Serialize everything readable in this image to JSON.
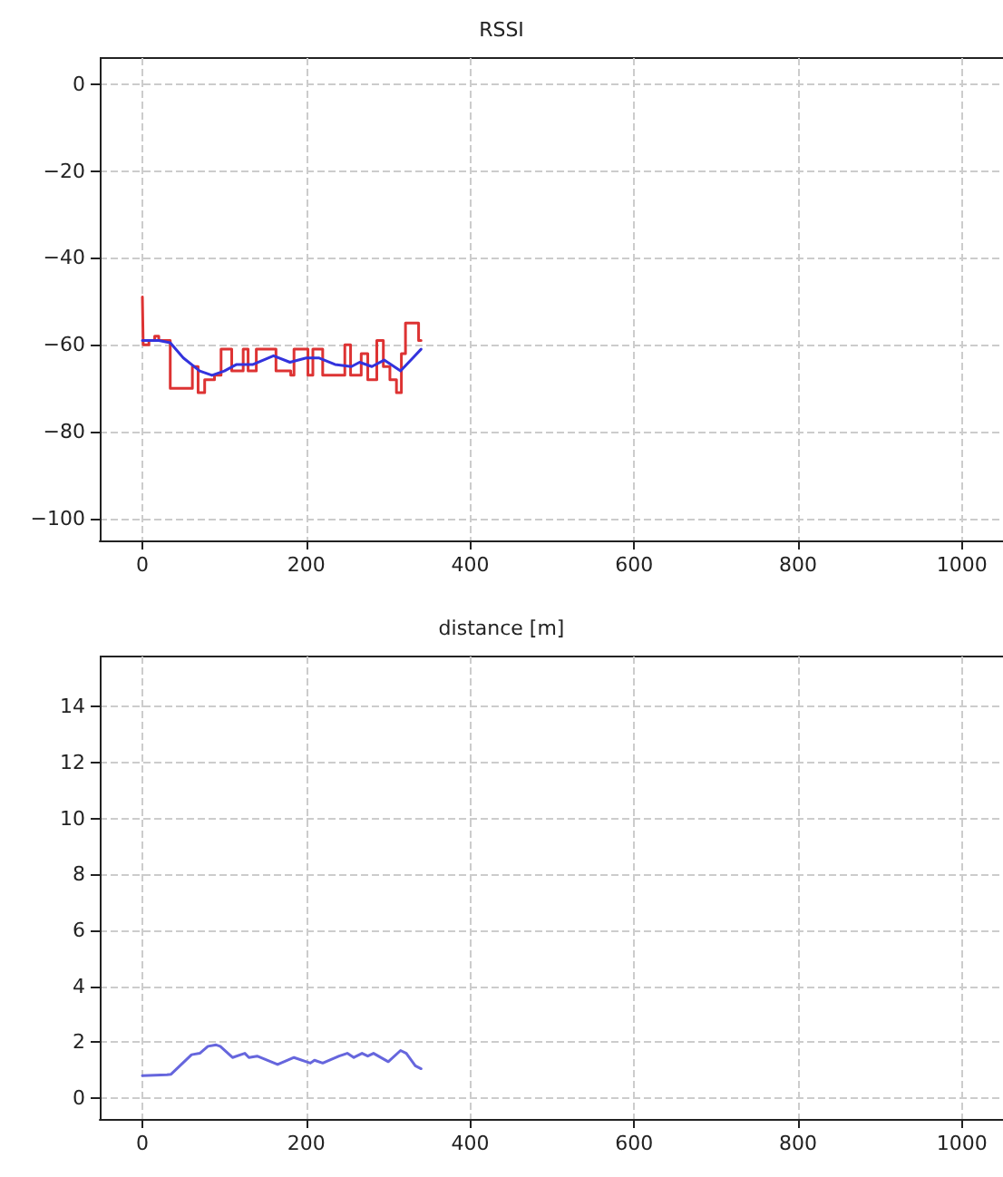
{
  "chart_data": [
    {
      "type": "line",
      "title": "RSSI",
      "xlim": [
        -52,
        1050
      ],
      "ylim": [
        -105,
        6
      ],
      "xticks": [
        0,
        200,
        400,
        600,
        800,
        1000
      ],
      "yticks": [
        0,
        -20,
        -40,
        -60,
        -80,
        -100
      ],
      "grid": true,
      "series": [
        {
          "type": "step",
          "color": "#dd3333",
          "x": [
            0,
            1,
            8,
            15,
            20,
            34,
            61,
            68,
            76,
            88,
            96,
            109,
            123,
            129,
            139,
            163,
            181,
            185,
            202,
            208,
            220,
            247,
            254,
            267,
            275,
            286,
            294,
            302,
            310,
            316,
            321,
            337,
            340
          ],
          "values": [
            -49,
            -60,
            -59,
            -58,
            -59,
            -70,
            -65,
            -71,
            -68,
            -67,
            -61,
            -66,
            -61,
            -66,
            -61,
            -66,
            -67,
            -61,
            -67,
            -61,
            -67,
            -60,
            -67,
            -62,
            -68,
            -59,
            -65,
            -68,
            -71,
            -62,
            -55,
            -59,
            -59
          ]
        },
        {
          "color": "#3333dd",
          "x": [
            0,
            20,
            34,
            50,
            70,
            85,
            100,
            115,
            135,
            160,
            180,
            200,
            215,
            235,
            255,
            265,
            280,
            295,
            315,
            330,
            340
          ],
          "values": [
            -59,
            -59,
            -59.5,
            -63,
            -66,
            -67,
            -66,
            -64.5,
            -64.5,
            -62.5,
            -64,
            -63,
            -63,
            -64.5,
            -65,
            -64,
            -65,
            -63.5,
            -66,
            -63,
            -61
          ]
        }
      ]
    },
    {
      "type": "line",
      "title": "distance [m]",
      "xlim": [
        -52,
        1050
      ],
      "ylim": [
        -0.75,
        15.8
      ],
      "xticks": [
        0,
        200,
        400,
        600,
        800,
        1000
      ],
      "yticks": [
        0,
        2,
        4,
        6,
        8,
        10,
        12,
        14
      ],
      "grid": true,
      "series": [
        {
          "color": "#6666dd",
          "x": [
            0,
            30,
            35,
            60,
            70,
            80,
            90,
            95,
            110,
            120,
            125,
            130,
            140,
            165,
            185,
            200,
            205,
            210,
            220,
            240,
            250,
            258,
            268,
            275,
            282,
            300,
            315,
            322,
            333,
            340
          ],
          "values": [
            0.8,
            0.83,
            0.85,
            1.55,
            1.6,
            1.85,
            1.9,
            1.85,
            1.45,
            1.55,
            1.6,
            1.45,
            1.5,
            1.2,
            1.45,
            1.3,
            1.25,
            1.35,
            1.25,
            1.5,
            1.6,
            1.45,
            1.6,
            1.5,
            1.6,
            1.3,
            1.7,
            1.6,
            1.15,
            1.05
          ]
        }
      ]
    }
  ]
}
